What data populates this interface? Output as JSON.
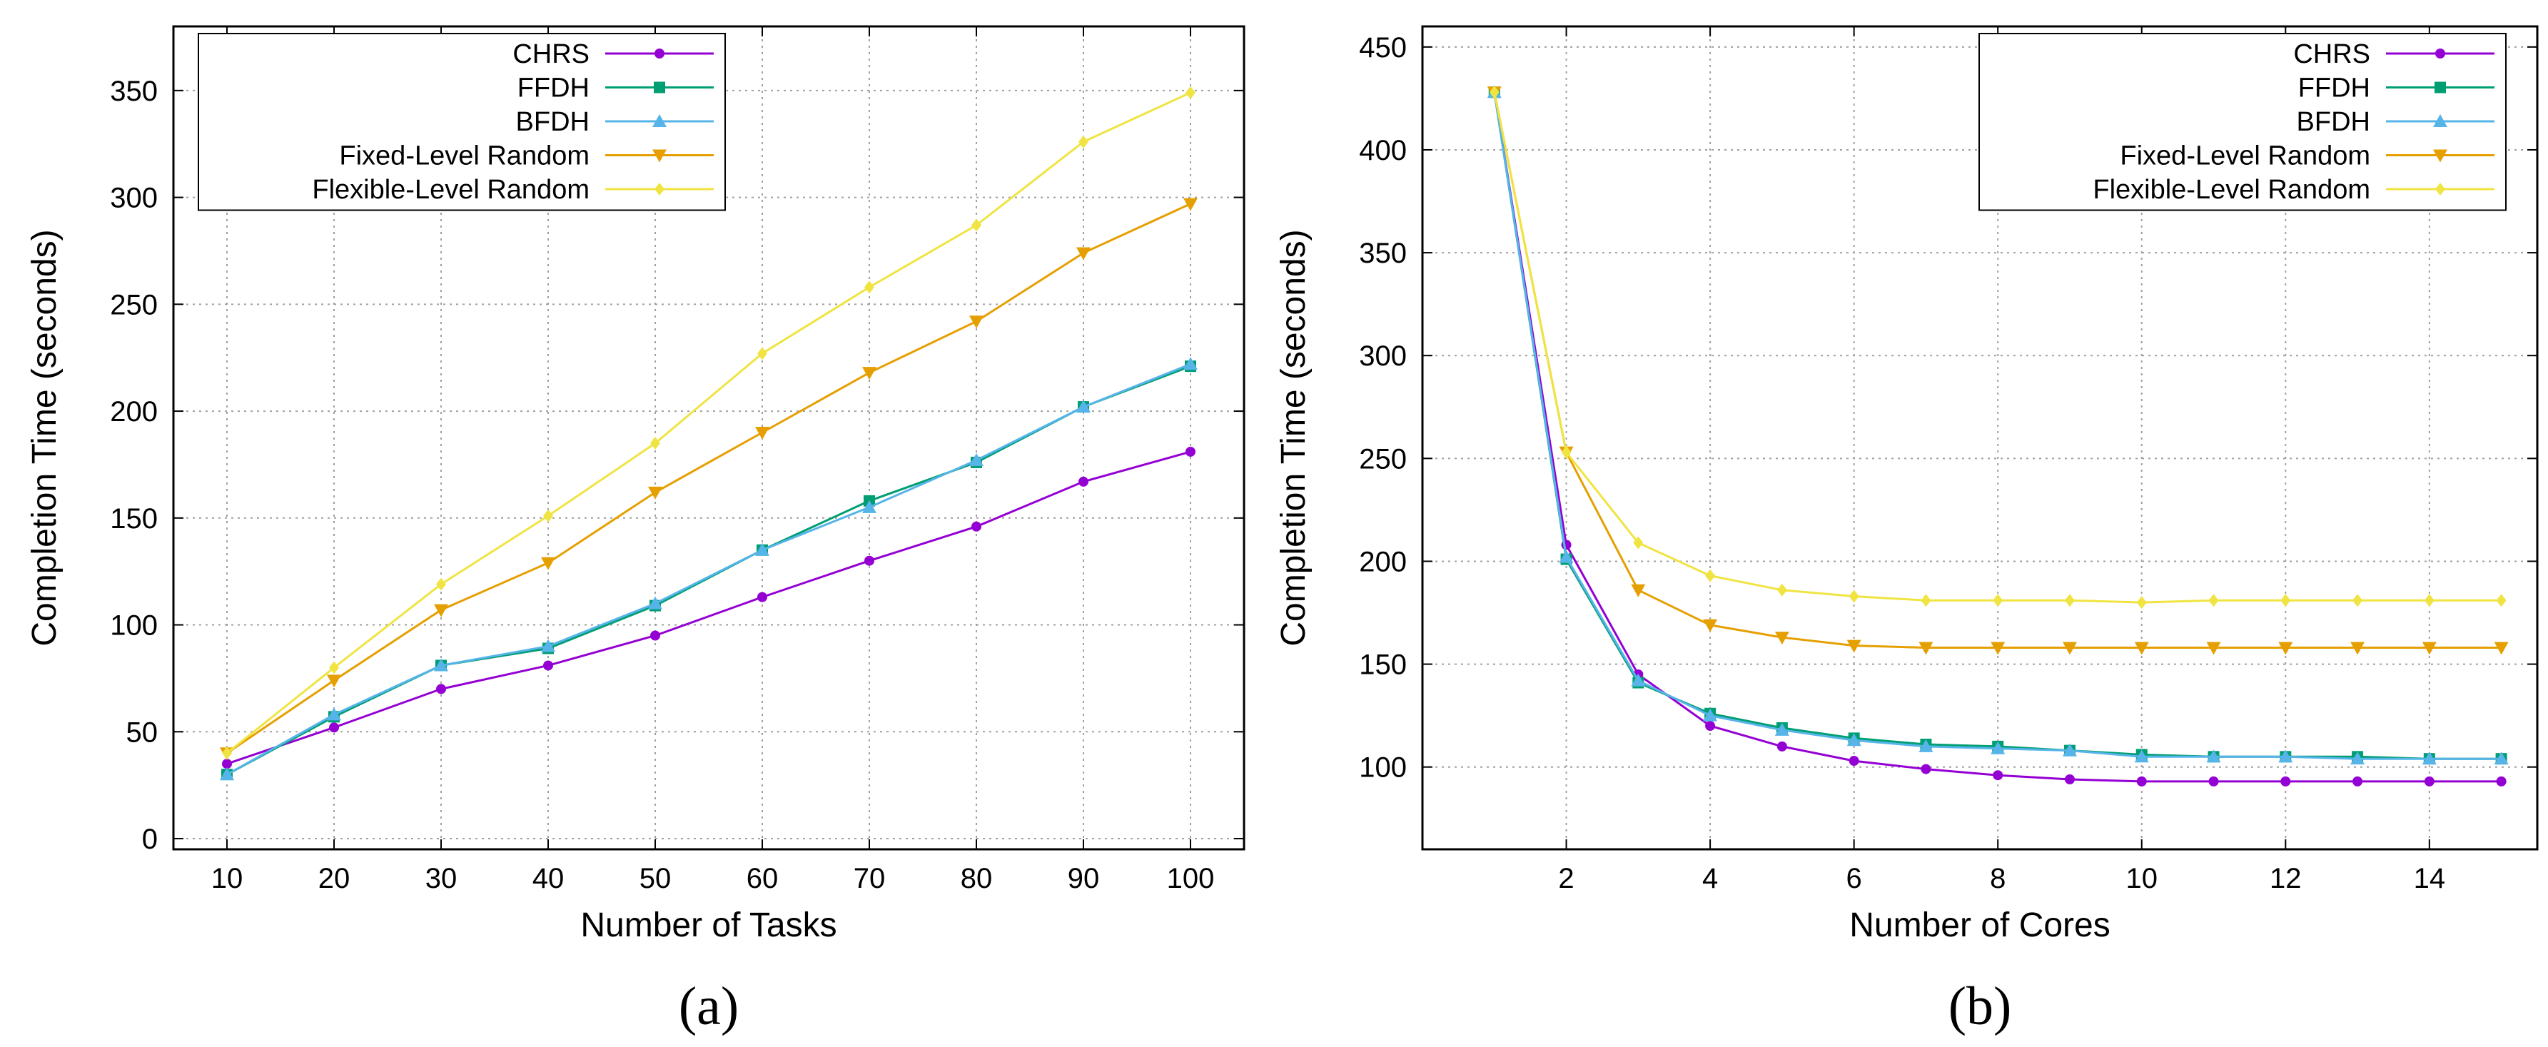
{
  "colors": {
    "CHRS": "#9400D3",
    "FFDH": "#009E73",
    "BFDH": "#56B4E9",
    "Fixed-Level Random": "#E69F00",
    "Flexible-Level Random": "#F0E442"
  },
  "chart_data": [
    {
      "type": "line",
      "panel_label": "(a)",
      "xlabel": "Number of Tasks",
      "ylabel": "Completion Time (seconds)",
      "xlim": [
        5,
        105
      ],
      "ylim": [
        -5,
        380
      ],
      "xticks": [
        10,
        20,
        30,
        40,
        50,
        60,
        70,
        80,
        90,
        100
      ],
      "yticks": [
        0,
        50,
        100,
        150,
        200,
        250,
        300,
        350
      ],
      "grid": true,
      "legend_position": "top-left",
      "x": [
        10,
        20,
        30,
        40,
        50,
        60,
        70,
        80,
        90,
        100
      ],
      "series": [
        {
          "name": "CHRS",
          "marker": "circle",
          "values": [
            35,
            52,
            70,
            81,
            95,
            113,
            130,
            146,
            167,
            181
          ]
        },
        {
          "name": "FFDH",
          "marker": "square",
          "values": [
            30,
            57,
            81,
            89,
            109,
            135,
            158,
            176,
            202,
            221
          ]
        },
        {
          "name": "BFDH",
          "marker": "triangle-up",
          "values": [
            30,
            58,
            81,
            90,
            110,
            135,
            155,
            177,
            202,
            222
          ]
        },
        {
          "name": "Fixed-Level Random",
          "marker": "triangle-down",
          "values": [
            40,
            74,
            107,
            129,
            162,
            190,
            218,
            242,
            274,
            297
          ]
        },
        {
          "name": "Flexible-Level Random",
          "marker": "diamond",
          "values": [
            40,
            80,
            119,
            151,
            185,
            227,
            258,
            287,
            326,
            349
          ]
        }
      ]
    },
    {
      "type": "line",
      "panel_label": "(b)",
      "xlabel": "Number of Cores",
      "ylabel": "Completion Time (seconds)",
      "xlim": [
        0,
        15.5
      ],
      "ylim": [
        60,
        460
      ],
      "xticks": [
        2,
        4,
        6,
        8,
        10,
        12,
        14
      ],
      "yticks": [
        100,
        150,
        200,
        250,
        300,
        350,
        400,
        450
      ],
      "grid": true,
      "legend_position": "top-right",
      "x": [
        1,
        2,
        3,
        4,
        5,
        6,
        7,
        8,
        9,
        10,
        11,
        12,
        13,
        14,
        15
      ],
      "series": [
        {
          "name": "CHRS",
          "marker": "circle",
          "values": [
            428,
            208,
            145,
            120,
            110,
            103,
            99,
            96,
            94,
            93,
            93,
            93,
            93,
            93,
            93
          ]
        },
        {
          "name": "FFDH",
          "marker": "square",
          "values": [
            428,
            201,
            141,
            126,
            119,
            114,
            111,
            110,
            108,
            106,
            105,
            105,
            105,
            104,
            104
          ]
        },
        {
          "name": "BFDH",
          "marker": "triangle-up",
          "values": [
            428,
            202,
            142,
            125,
            118,
            113,
            110,
            109,
            108,
            105,
            105,
            105,
            104,
            104,
            104
          ]
        },
        {
          "name": "Fixed-Level Random",
          "marker": "triangle-down",
          "values": [
            428,
            253,
            186,
            169,
            163,
            159,
            158,
            158,
            158,
            158,
            158,
            158,
            158,
            158,
            158
          ]
        },
        {
          "name": "Flexible-Level Random",
          "marker": "diamond",
          "values": [
            428,
            253,
            209,
            193,
            186,
            183,
            181,
            181,
            181,
            180,
            181,
            181,
            181,
            181,
            181
          ]
        }
      ]
    }
  ]
}
